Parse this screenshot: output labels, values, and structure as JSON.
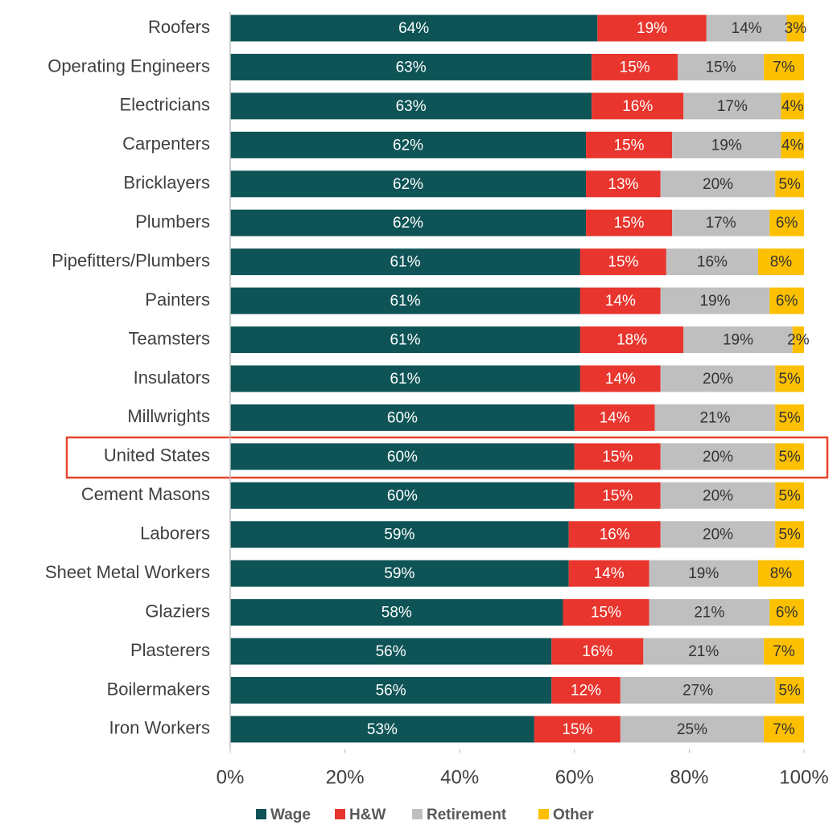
{
  "chart_data": {
    "type": "stacked-bar-horizontal",
    "categories": [
      "Roofers",
      "Operating Engineers",
      "Electricians",
      "Carpenters",
      "Bricklayers",
      "Plumbers",
      "Pipefitters/Plumbers",
      "Painters",
      "Teamsters",
      "Insulators",
      "Millwrights",
      "United States",
      "Cement Masons",
      "Laborers",
      "Sheet Metal Workers",
      "Glaziers",
      "Plasterers",
      "Boilermakers",
      "Iron Workers"
    ],
    "series": [
      {
        "name": "Wage",
        "color": "#0e5456",
        "values": [
          64,
          63,
          63,
          62,
          62,
          62,
          61,
          61,
          61,
          61,
          60,
          60,
          60,
          59,
          59,
          58,
          56,
          56,
          53
        ],
        "value_labels": [
          "64%",
          "63%",
          "63%",
          "62%",
          "62%",
          "62%",
          "61%",
          "61%",
          "61%",
          "61%",
          "60%",
          "60%",
          "60%",
          "59%",
          "59%",
          "58%",
          "56%",
          "56%",
          "53%"
        ]
      },
      {
        "name": "H&W",
        "color": "#e8352d",
        "values": [
          19,
          15,
          16,
          15,
          13,
          15,
          15,
          14,
          18,
          14,
          14,
          15,
          15,
          16,
          14,
          15,
          16,
          12,
          15
        ],
        "value_labels": [
          "19%",
          "15%",
          "16%",
          "15%",
          "13%",
          "15%",
          "15%",
          "14%",
          "18%",
          "14%",
          "14%",
          "15%",
          "15%",
          "16%",
          "14%",
          "15%",
          "16%",
          "12%",
          "15%"
        ]
      },
      {
        "name": "Retirement",
        "color": "#bfbfbf",
        "values": [
          14,
          15,
          17,
          19,
          20,
          17,
          16,
          19,
          19,
          20,
          21,
          20,
          20,
          20,
          19,
          21,
          21,
          27,
          25
        ],
        "value_labels": [
          "14%",
          "15%",
          "17%",
          "19%",
          "20%",
          "17%",
          "16%",
          "19%",
          "19%",
          "20%",
          "21%",
          "20%",
          "20%",
          "20%",
          "19%",
          "21%",
          "21%",
          "27%",
          "25%"
        ]
      },
      {
        "name": "Other",
        "color": "#fcc000",
        "values": [
          3,
          7,
          4,
          4,
          5,
          6,
          8,
          6,
          2,
          5,
          5,
          5,
          5,
          5,
          8,
          6,
          7,
          5,
          7
        ],
        "value_labels": [
          "3%",
          "7%",
          "4%",
          "4%",
          "5%",
          "6%",
          "8%",
          "6%",
          "2%",
          "5%",
          "5%",
          "5%",
          "5%",
          "5%",
          "8%",
          "6%",
          "7%",
          "5%",
          "7%"
        ]
      }
    ],
    "xlim": [
      0,
      100
    ],
    "xticks": [
      {
        "value": 0,
        "label": "0%"
      },
      {
        "value": 20,
        "label": "20%"
      },
      {
        "value": 40,
        "label": "40%"
      },
      {
        "value": 60,
        "label": "60%"
      },
      {
        "value": 80,
        "label": "80%"
      },
      {
        "value": 100,
        "label": "100%"
      }
    ],
    "legend": "bottom"
  }
}
